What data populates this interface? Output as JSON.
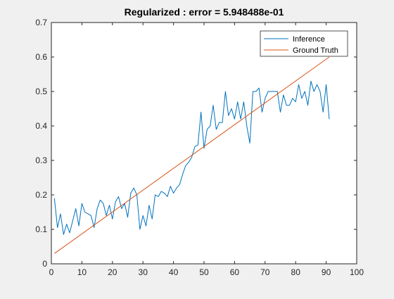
{
  "window": {
    "background": "#f0f0f0"
  },
  "chart_data": {
    "type": "line",
    "title": "Regularized : error = 5.948488e-01",
    "xlabel": "",
    "ylabel": "",
    "xlim": [
      0,
      100
    ],
    "ylim": [
      0,
      0.7
    ],
    "xticks": [
      0,
      10,
      20,
      30,
      40,
      50,
      60,
      70,
      80,
      90,
      100
    ],
    "yticks": [
      0,
      0.1,
      0.2,
      0.3,
      0.4,
      0.5,
      0.6,
      0.7
    ],
    "xtick_labels": [
      "0",
      "10",
      "20",
      "30",
      "40",
      "50",
      "60",
      "70",
      "80",
      "90",
      "100"
    ],
    "ytick_labels": [
      "0",
      "0.1",
      "0.2",
      "0.3",
      "0.4",
      "0.5",
      "0.6",
      "0.7"
    ],
    "grid": false,
    "legend_position": "top-right",
    "series": [
      {
        "name": "Inference",
        "color": "#0072BD",
        "x": [
          1,
          2,
          3,
          4,
          5,
          6,
          7,
          8,
          9,
          10,
          11,
          12,
          13,
          14,
          15,
          16,
          17,
          18,
          19,
          20,
          21,
          22,
          23,
          24,
          25,
          26,
          27,
          28,
          29,
          30,
          31,
          32,
          33,
          34,
          35,
          36,
          37,
          38,
          39,
          40,
          41,
          42,
          43,
          44,
          45,
          46,
          47,
          48,
          49,
          50,
          51,
          52,
          53,
          54,
          55,
          56,
          57,
          58,
          59,
          60,
          61,
          62,
          63,
          64,
          65,
          66,
          67,
          68,
          69,
          70,
          71,
          72,
          73,
          74,
          75,
          76,
          77,
          78,
          79,
          80,
          81,
          82,
          83,
          84,
          85,
          86,
          87,
          88,
          89,
          90,
          91
        ],
        "y": [
          0.19,
          0.105,
          0.145,
          0.085,
          0.115,
          0.09,
          0.125,
          0.16,
          0.11,
          0.175,
          0.15,
          0.145,
          0.14,
          0.105,
          0.16,
          0.185,
          0.175,
          0.14,
          0.17,
          0.13,
          0.18,
          0.195,
          0.16,
          0.175,
          0.135,
          0.205,
          0.22,
          0.2,
          0.1,
          0.14,
          0.11,
          0.17,
          0.13,
          0.2,
          0.195,
          0.21,
          0.205,
          0.195,
          0.225,
          0.205,
          0.22,
          0.23,
          0.26,
          0.285,
          0.295,
          0.31,
          0.34,
          0.345,
          0.44,
          0.335,
          0.39,
          0.4,
          0.46,
          0.39,
          0.41,
          0.41,
          0.5,
          0.43,
          0.45,
          0.42,
          0.47,
          0.42,
          0.47,
          0.4,
          0.35,
          0.5,
          0.5,
          0.51,
          0.44,
          0.48,
          0.5,
          0.5,
          0.5,
          0.5,
          0.44,
          0.49,
          0.46,
          0.46,
          0.48,
          0.47,
          0.52,
          0.48,
          0.5,
          0.46,
          0.53,
          0.5,
          0.52,
          0.5,
          0.44,
          0.52,
          0.42
        ],
        "values": [
          0.19,
          0.105,
          0.145,
          0.085,
          0.115,
          0.09,
          0.125,
          0.16,
          0.11,
          0.175,
          0.15,
          0.145,
          0.14,
          0.105,
          0.16,
          0.185,
          0.175,
          0.14,
          0.17,
          0.13,
          0.18,
          0.195,
          0.16,
          0.175,
          0.135,
          0.205,
          0.22,
          0.2,
          0.1,
          0.14,
          0.11,
          0.17,
          0.13,
          0.2,
          0.195,
          0.21,
          0.205,
          0.195,
          0.225,
          0.205,
          0.22,
          0.23,
          0.26,
          0.285,
          0.295,
          0.31,
          0.34,
          0.345,
          0.44,
          0.335,
          0.39,
          0.4,
          0.46,
          0.39,
          0.41,
          0.41,
          0.5,
          0.43,
          0.45,
          0.42,
          0.47,
          0.42,
          0.47,
          0.4,
          0.35,
          0.5,
          0.5,
          0.51,
          0.44,
          0.48,
          0.5,
          0.5,
          0.5,
          0.5,
          0.44,
          0.49,
          0.46,
          0.46,
          0.48,
          0.47,
          0.52,
          0.48,
          0.5,
          0.46,
          0.53,
          0.5,
          0.52,
          0.5,
          0.44,
          0.52,
          0.42
        ]
      },
      {
        "name": "Ground Truth",
        "color": "#D95319",
        "x": [
          1,
          91
        ],
        "y": [
          0.03,
          0.6
        ],
        "values": [
          0.03,
          0.6
        ]
      }
    ]
  }
}
